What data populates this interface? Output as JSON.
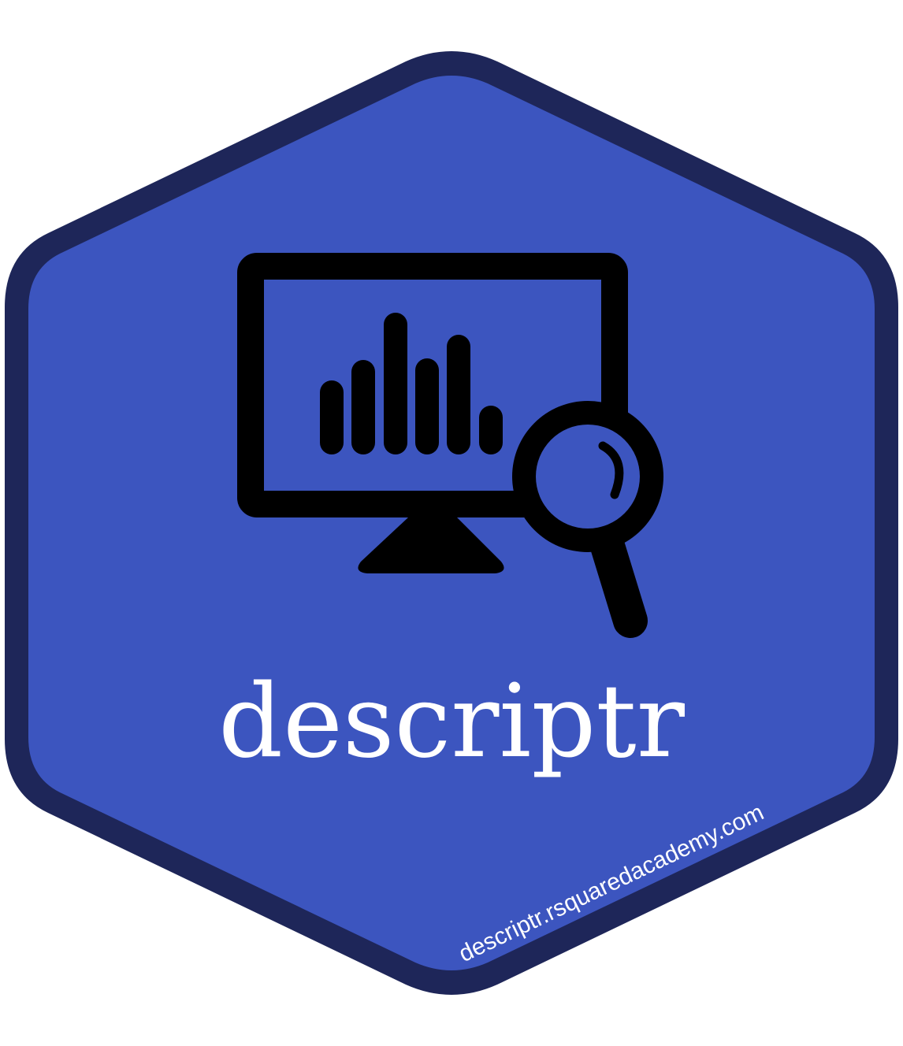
{
  "logo": {
    "name": "descriptr",
    "url": "descriptr.rsquaredacademy.com",
    "colors": {
      "fill": "#3c55bf",
      "border": "#1e2659",
      "icon": "#000000",
      "text": "#ffffff",
      "background": "#ffffff"
    },
    "icons": [
      "monitor-icon",
      "bar-chart-icon",
      "magnifying-glass-icon"
    ]
  }
}
